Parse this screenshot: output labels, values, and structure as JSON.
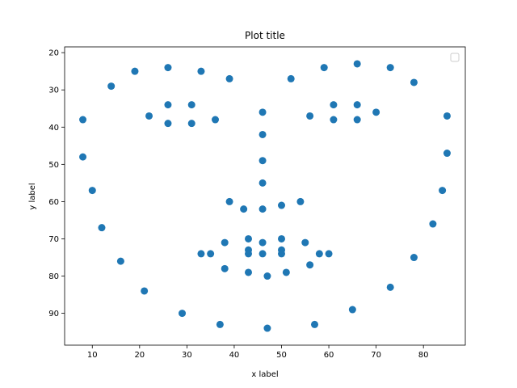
{
  "chart_data": {
    "type": "scatter",
    "title": "Plot title",
    "xlabel": "x label",
    "ylabel": "y label",
    "xlim": [
      4.15,
      88.85
    ],
    "ylim": [
      98.55,
      18.45
    ],
    "y_inverted": true,
    "xticks": [
      10,
      20,
      30,
      40,
      50,
      60,
      70,
      80
    ],
    "yticks": [
      20,
      30,
      40,
      50,
      60,
      70,
      80,
      90
    ],
    "grid": false,
    "legend": "upper-right",
    "series": [
      {
        "color": "#1f77b4",
        "points": [
          [
            8,
            38
          ],
          [
            8,
            48
          ],
          [
            10,
            57
          ],
          [
            12,
            67
          ],
          [
            14,
            29
          ],
          [
            16,
            76
          ],
          [
            19,
            25
          ],
          [
            21,
            84
          ],
          [
            22,
            37
          ],
          [
            26,
            24
          ],
          [
            26,
            34
          ],
          [
            26,
            39
          ],
          [
            29,
            90
          ],
          [
            31,
            34
          ],
          [
            31,
            39
          ],
          [
            33,
            25
          ],
          [
            33,
            74
          ],
          [
            35,
            74
          ],
          [
            36,
            38
          ],
          [
            37,
            93
          ],
          [
            38,
            71
          ],
          [
            38,
            78
          ],
          [
            39,
            27
          ],
          [
            39,
            60
          ],
          [
            42,
            62
          ],
          [
            43,
            70
          ],
          [
            43,
            73
          ],
          [
            43,
            74
          ],
          [
            43,
            79
          ],
          [
            46,
            36
          ],
          [
            46,
            42
          ],
          [
            46,
            49
          ],
          [
            46,
            55
          ],
          [
            46,
            62
          ],
          [
            46,
            71
          ],
          [
            46,
            74
          ],
          [
            47,
            80
          ],
          [
            47,
            94
          ],
          [
            50,
            61
          ],
          [
            50,
            70
          ],
          [
            50,
            73
          ],
          [
            50,
            74
          ],
          [
            51,
            79
          ],
          [
            52,
            27
          ],
          [
            54,
            60
          ],
          [
            55,
            71
          ],
          [
            56,
            37
          ],
          [
            56,
            77
          ],
          [
            57,
            93
          ],
          [
            58,
            74
          ],
          [
            59,
            24
          ],
          [
            60,
            74
          ],
          [
            61,
            34
          ],
          [
            61,
            38
          ],
          [
            65,
            89
          ],
          [
            66,
            23
          ],
          [
            66,
            34
          ],
          [
            66,
            38
          ],
          [
            70,
            36
          ],
          [
            73,
            24
          ],
          [
            73,
            83
          ],
          [
            78,
            28
          ],
          [
            78,
            75
          ],
          [
            82,
            66
          ],
          [
            84,
            57
          ],
          [
            85,
            37
          ],
          [
            85,
            47
          ]
        ]
      }
    ]
  }
}
